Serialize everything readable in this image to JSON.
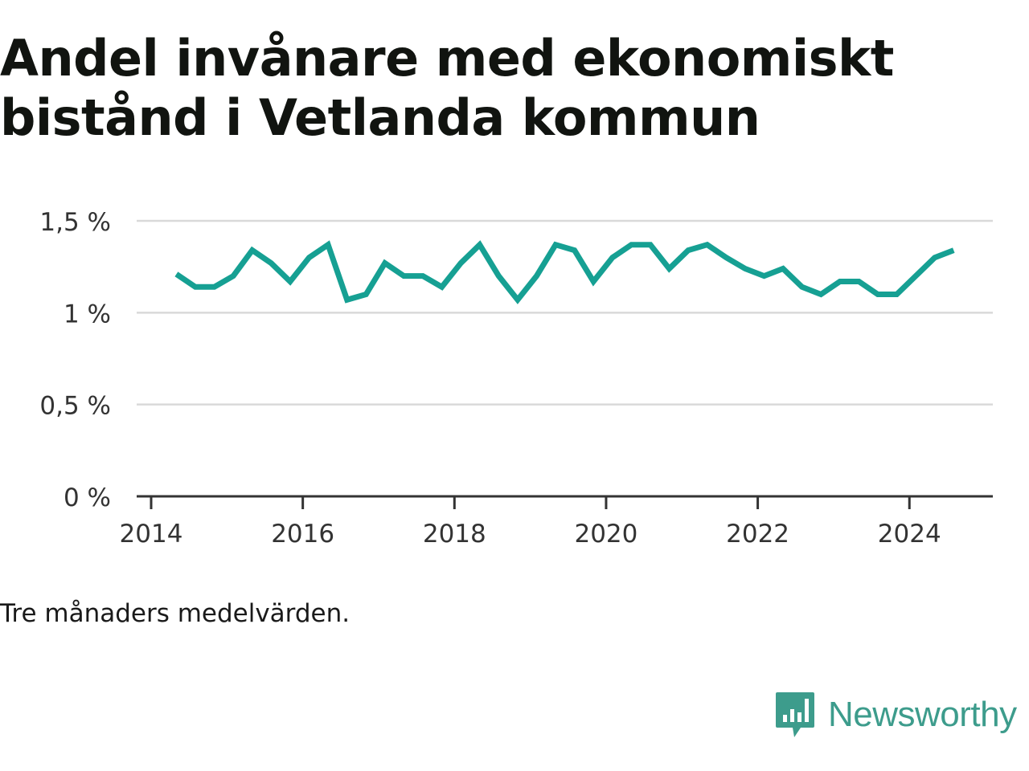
{
  "title": "Andel invånare med ekonomiskt bistånd i Vetlanda kommun",
  "caption": "Tre månaders medelvärden.",
  "brand": {
    "name": "Newsworthy",
    "color": "#3d9c8c",
    "icon": "newsworthy-logo-icon"
  },
  "colors": {
    "line": "#16a093",
    "grid": "#d9d9d9",
    "axis": "#333333"
  },
  "chart_data": {
    "type": "line",
    "xlabel": "",
    "ylabel": "",
    "ylim": [
      0,
      0.015
    ],
    "xlim": [
      2014,
      2025.1
    ],
    "yticks": [
      {
        "value": 0,
        "label": "0 %"
      },
      {
        "value": 0.005,
        "label": "0,5 %"
      },
      {
        "value": 0.01,
        "label": "1 %"
      },
      {
        "value": 0.015,
        "label": "1,5 %"
      }
    ],
    "xticks": [
      {
        "value": 2014,
        "label": "2014"
      },
      {
        "value": 2016,
        "label": "2016"
      },
      {
        "value": 2018,
        "label": "2018"
      },
      {
        "value": 2020,
        "label": "2020"
      },
      {
        "value": 2022,
        "label": "2022"
      },
      {
        "value": 2024,
        "label": "2024"
      }
    ],
    "grid": true,
    "series": [
      {
        "x": [
          "2014-05",
          "2014-08",
          "2014-11",
          "2015-02",
          "2015-05",
          "2015-08",
          "2015-11",
          "2016-02",
          "2016-05",
          "2016-08",
          "2016-11",
          "2017-02",
          "2017-05",
          "2017-08",
          "2017-11",
          "2018-02",
          "2018-05",
          "2018-08",
          "2018-11",
          "2019-02",
          "2019-05",
          "2019-08",
          "2019-11",
          "2020-02",
          "2020-05",
          "2020-08",
          "2020-11",
          "2021-02",
          "2021-05",
          "2021-08",
          "2021-11",
          "2022-02",
          "2022-05",
          "2022-08",
          "2022-11",
          "2023-02",
          "2023-05",
          "2023-08",
          "2023-11",
          "2024-02",
          "2024-05",
          "2024-08"
        ],
        "values": [
          0.0121,
          0.0114,
          0.0114,
          0.012,
          0.0134,
          0.0127,
          0.0117,
          0.013,
          0.0137,
          0.0107,
          0.011,
          0.0127,
          0.012,
          0.012,
          0.0114,
          0.0127,
          0.0137,
          0.012,
          0.0107,
          0.012,
          0.0137,
          0.0134,
          0.0117,
          0.013,
          0.0137,
          0.0137,
          0.0124,
          0.0134,
          0.0137,
          0.013,
          0.0124,
          0.012,
          0.0124,
          0.0114,
          0.011,
          0.0117,
          0.0117,
          0.011,
          0.011,
          0.012,
          0.013,
          0.0134
        ]
      }
    ]
  }
}
